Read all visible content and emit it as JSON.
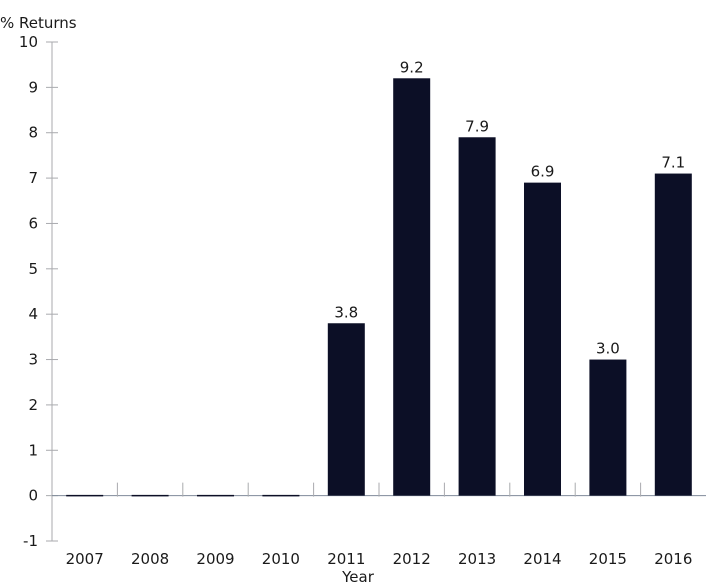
{
  "chart_data": {
    "type": "bar",
    "title": "",
    "ylabel": "% Returns",
    "xlabel": "Year",
    "ylim": [
      -1,
      10
    ],
    "yticks": [
      -1,
      0,
      1,
      2,
      3,
      4,
      5,
      6,
      7,
      8,
      9,
      10
    ],
    "categories": [
      "2007",
      "2008",
      "2009",
      "2010",
      "2011",
      "2012",
      "2013",
      "2014",
      "2015",
      "2016"
    ],
    "values": [
      0,
      0,
      0,
      0,
      3.8,
      9.2,
      7.9,
      6.9,
      3.0,
      7.1
    ],
    "labels": [
      "",
      "",
      "",
      "",
      "3.8",
      "9.2",
      "7.9",
      "6.9",
      "3.0",
      "7.1"
    ],
    "grid": false,
    "legend": "none",
    "colors": {
      "bar": "#0c0f26",
      "axis": "#a9aaae",
      "zero_line": "#7f8a99"
    }
  }
}
